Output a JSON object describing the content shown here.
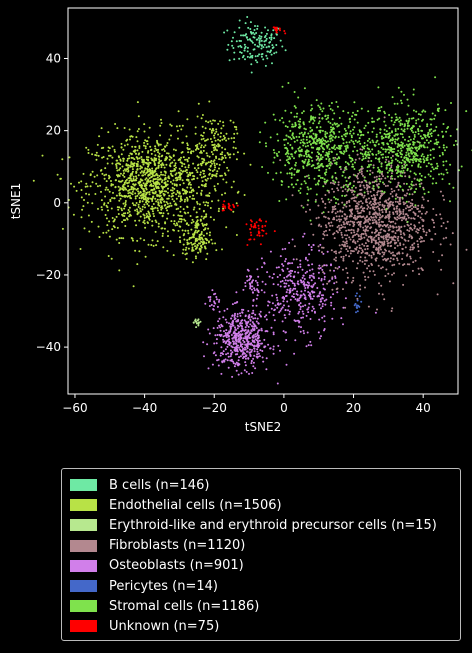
{
  "chart_data": {
    "type": "scatter",
    "xlabel": "tSNE2",
    "ylabel": "tSNE1",
    "xlim": [
      -62,
      50
    ],
    "ylim": [
      -53,
      54
    ],
    "xticks": [
      -60,
      -40,
      -20,
      0,
      20,
      40
    ],
    "yticks": [
      -40,
      -20,
      0,
      20,
      40
    ],
    "grid": false,
    "legend_position": "below",
    "series": [
      {
        "name": "B cells (n=146)",
        "color": "#6ee9a4",
        "clusters": [
          {
            "cx": -8,
            "cy": 44,
            "sx": 4,
            "sy": 3,
            "n": 146
          }
        ]
      },
      {
        "name": "Endothelial cells (n=1506)",
        "color": "#b8e246",
        "clusters": [
          {
            "cx": -38,
            "cy": 5,
            "sx": 9,
            "sy": 7,
            "n": 1200
          },
          {
            "cx": -20,
            "cy": 15,
            "sx": 3,
            "sy": 5,
            "n": 160
          },
          {
            "cx": -25,
            "cy": -10,
            "sx": 2,
            "sy": 3,
            "n": 146
          }
        ]
      },
      {
        "name": "Erythroid-like and erythroid precursor cells (n=15)",
        "color": "#b7e88f",
        "clusters": [
          {
            "cx": -25,
            "cy": -33,
            "sx": 0.6,
            "sy": 0.6,
            "n": 15
          }
        ]
      },
      {
        "name": "Fibroblasts (n=1120)",
        "color": "#b3888f",
        "clusters": [
          {
            "cx": 26,
            "cy": -5,
            "sx": 8,
            "sy": 8,
            "n": 1120
          }
        ]
      },
      {
        "name": "Osteoblasts (n=901)",
        "color": "#d17fea",
        "clusters": [
          {
            "cx": -12,
            "cy": -38,
            "sx": 4,
            "sy": 4,
            "n": 500
          },
          {
            "cx": 5,
            "cy": -25,
            "sx": 5,
            "sy": 6,
            "n": 340
          },
          {
            "cx": -9,
            "cy": -22,
            "sx": 1.5,
            "sy": 2,
            "n": 40
          },
          {
            "cx": -20,
            "cy": -27,
            "sx": 1,
            "sy": 1.5,
            "n": 21
          }
        ]
      },
      {
        "name": "Pericytes (n=14)",
        "color": "#4468c9",
        "clusters": [
          {
            "cx": 21,
            "cy": -28,
            "sx": 0.5,
            "sy": 1.5,
            "n": 14
          }
        ]
      },
      {
        "name": "Stromal cells (n=1186)",
        "color": "#7fe24d",
        "clusters": [
          {
            "cx": 10,
            "cy": 15,
            "sx": 7,
            "sy": 6,
            "n": 600
          },
          {
            "cx": 35,
            "cy": 15,
            "sx": 7,
            "sy": 6,
            "n": 586
          }
        ]
      },
      {
        "name": "Unknown (n=75)",
        "color": "#ff0000",
        "clusters": [
          {
            "cx": -8,
            "cy": -8,
            "sx": 1.5,
            "sy": 2,
            "n": 40
          },
          {
            "cx": -16,
            "cy": -1,
            "sx": 1.5,
            "sy": 0.6,
            "n": 20
          },
          {
            "cx": -2,
            "cy": 48,
            "sx": 1,
            "sy": 0.5,
            "n": 15
          }
        ]
      }
    ]
  }
}
